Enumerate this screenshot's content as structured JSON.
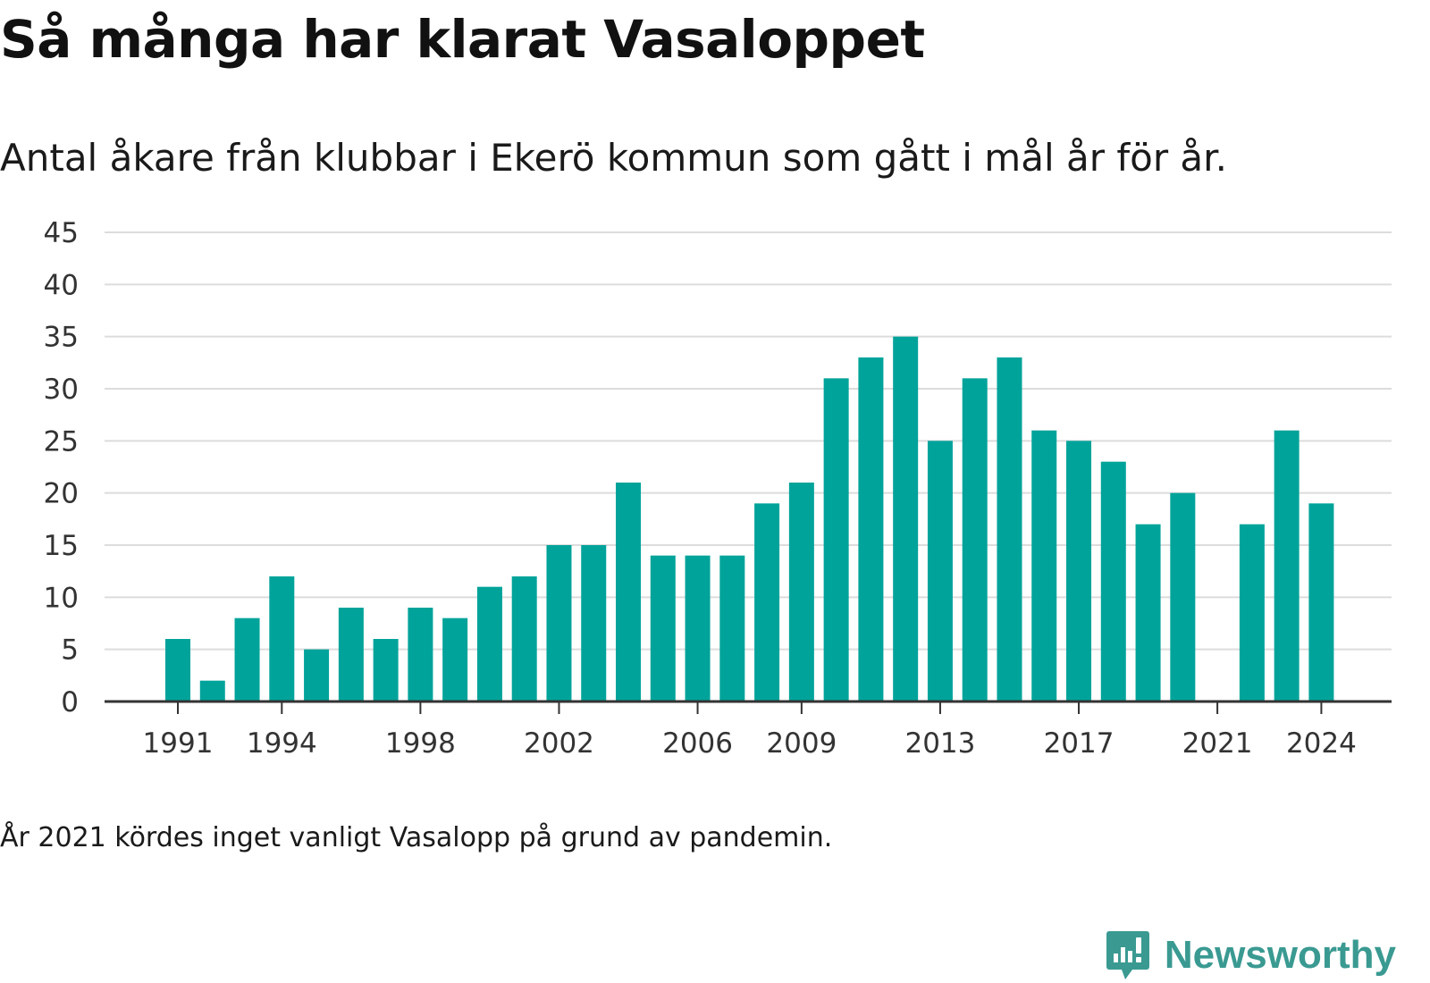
{
  "chart_data": {
    "type": "bar",
    "title": "Så många har klarat Vasaloppet",
    "subtitle": "Antal åkare från klubbar i Ekerö kommun som gått i mål år för år.",
    "xlabel": "",
    "ylabel": "",
    "categories": [
      1991,
      1992,
      1993,
      1994,
      1995,
      1996,
      1997,
      1998,
      1999,
      2000,
      2001,
      2002,
      2003,
      2004,
      2005,
      2006,
      2007,
      2008,
      2009,
      2010,
      2011,
      2012,
      2013,
      2014,
      2015,
      2016,
      2017,
      2018,
      2019,
      2020,
      2021,
      2022,
      2023,
      2024
    ],
    "values": [
      6,
      2,
      8,
      12,
      5,
      9,
      6,
      9,
      8,
      11,
      12,
      15,
      15,
      21,
      14,
      14,
      14,
      19,
      21,
      31,
      33,
      35,
      25,
      31,
      33,
      26,
      25,
      23,
      17,
      20,
      null,
      17,
      26,
      19
    ],
    "x_tick_labels": [
      "1991",
      "1994",
      "1998",
      "2002",
      "2006",
      "2009",
      "2013",
      "2017",
      "2021",
      "2024"
    ],
    "y_tick_labels": [
      "0",
      "5",
      "10",
      "15",
      "20",
      "25",
      "30",
      "35",
      "40",
      "45"
    ],
    "ylim": [
      0,
      45
    ],
    "grid": true,
    "bar_color": "#00a39a",
    "note": "År 2021 kördes inget vanligt Vasalopp på grund av pandemin."
  },
  "brand": {
    "name": "Newsworthy",
    "color": "#3a9a92",
    "icon": "newsworthy-logo-icon"
  }
}
